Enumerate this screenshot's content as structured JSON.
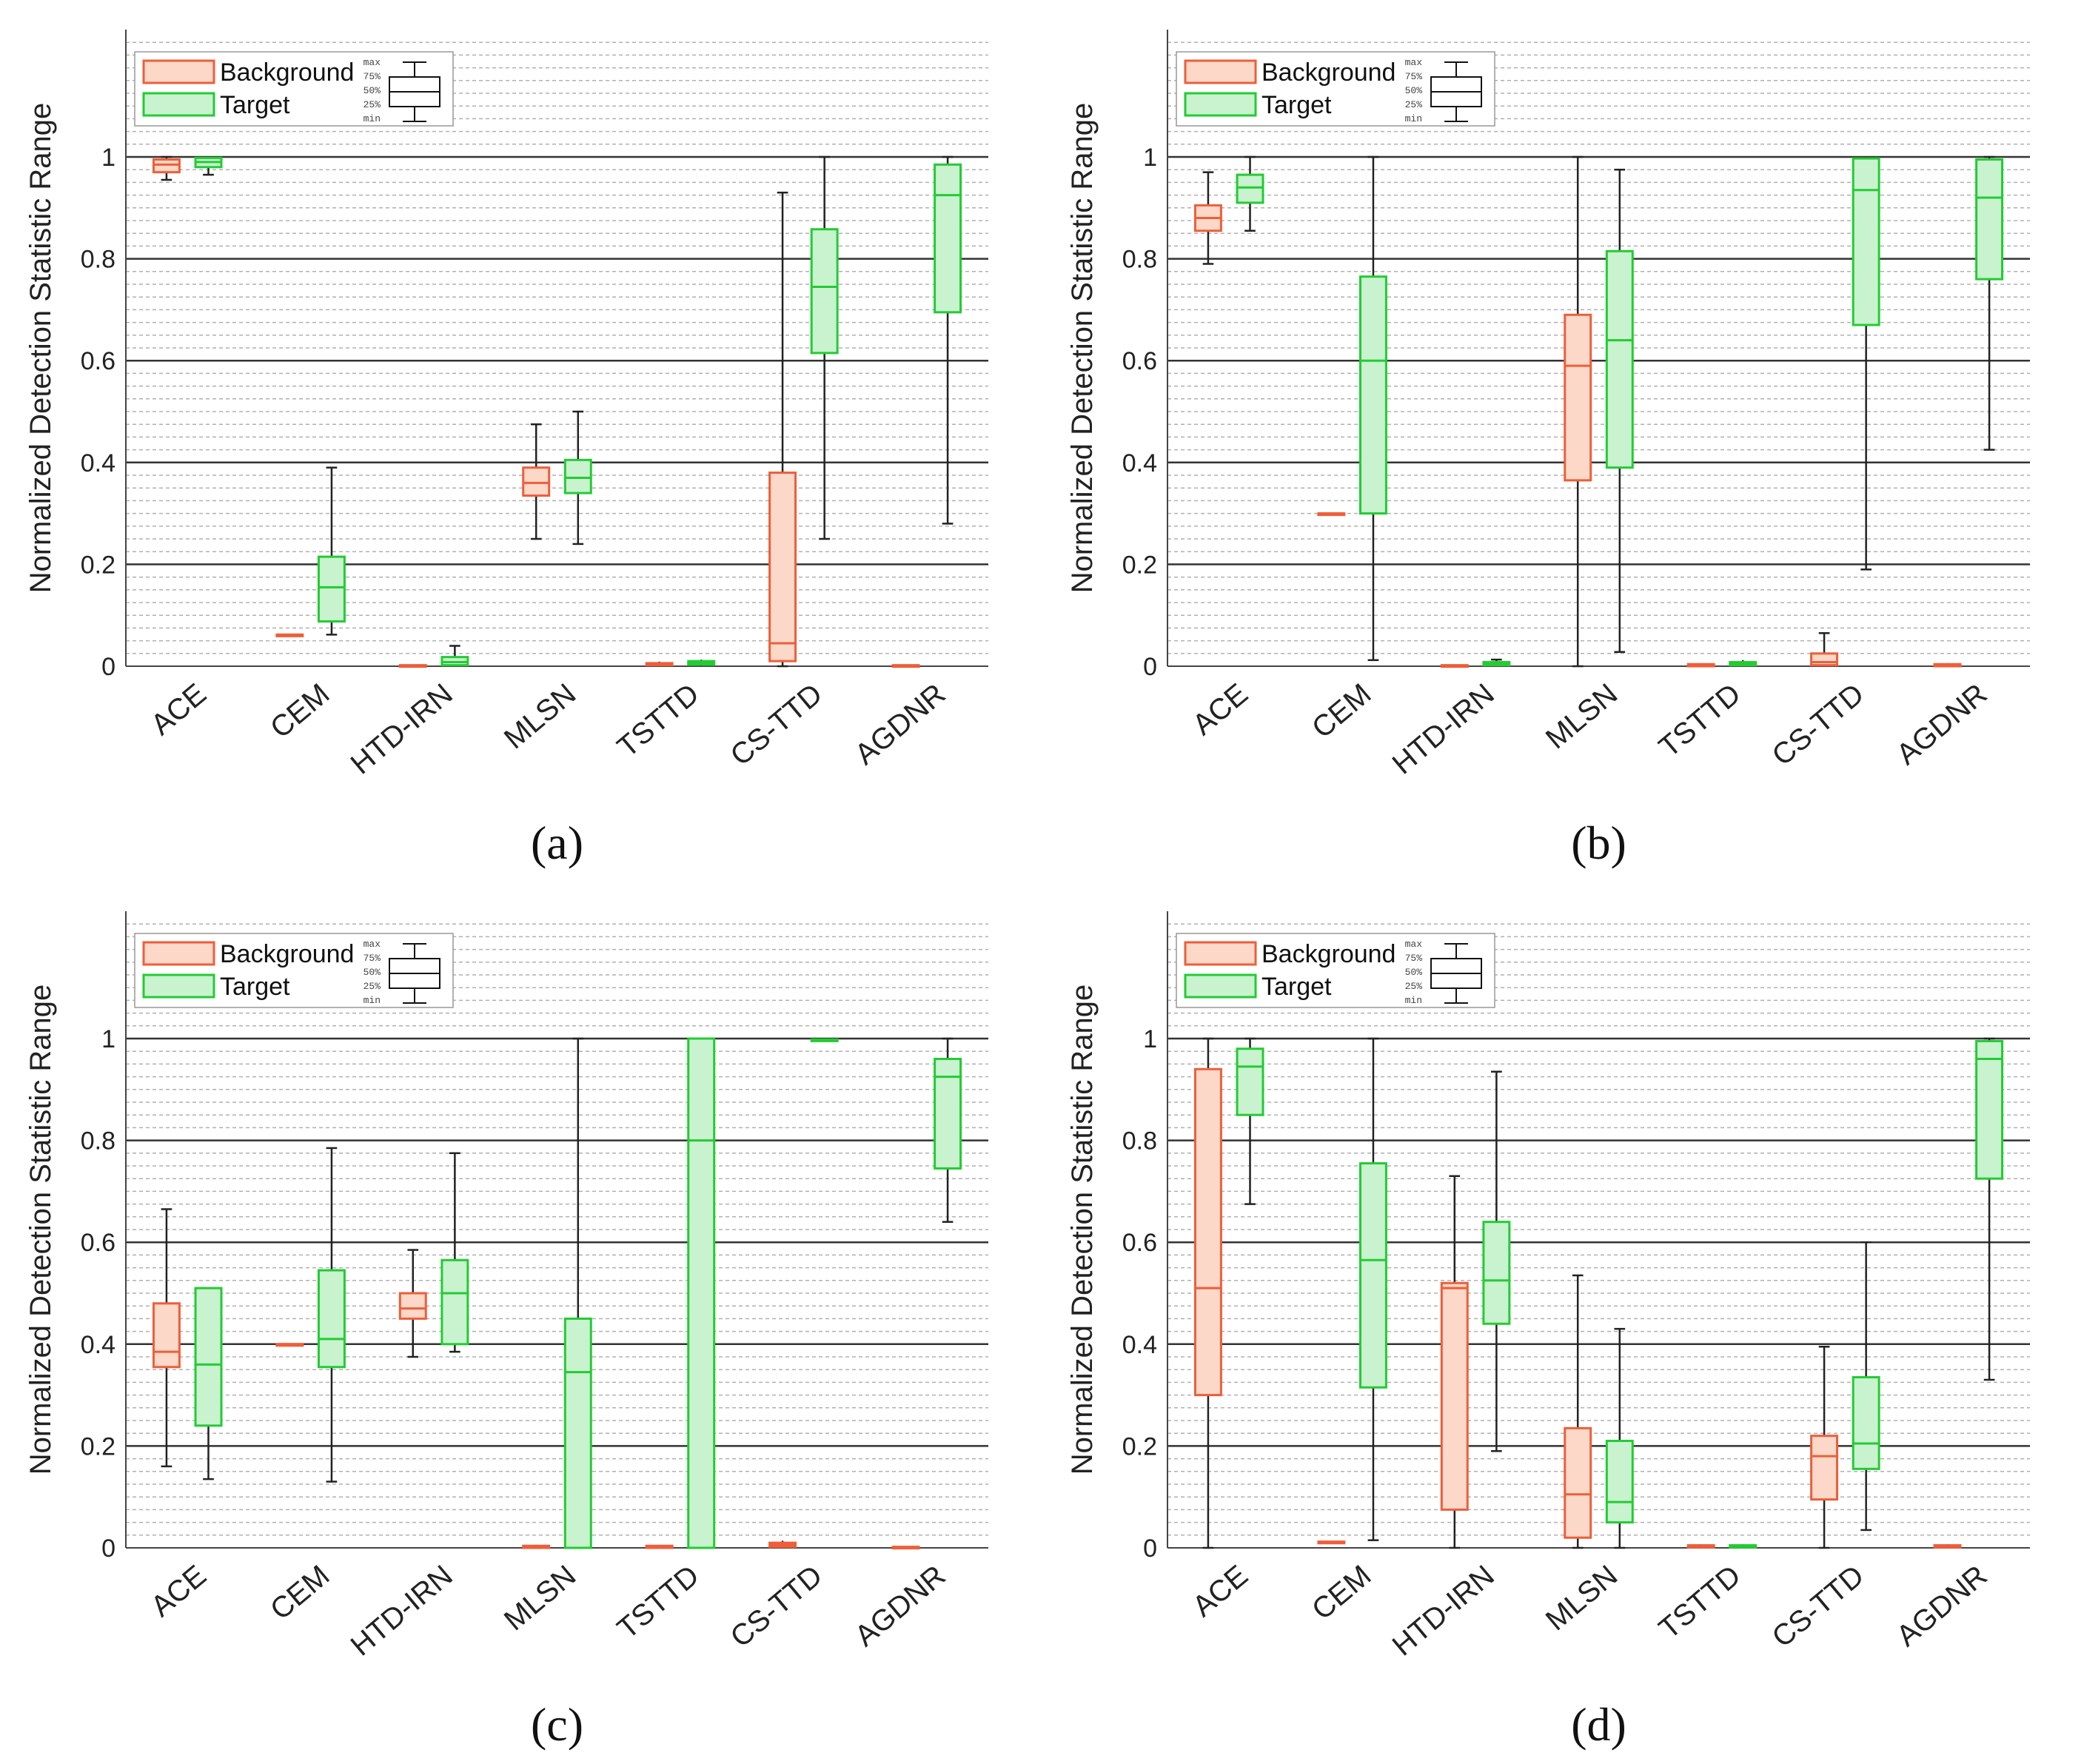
{
  "figure": {
    "colors": {
      "background_edge": "#ee5e3a",
      "background_fill": "#fbd8c8",
      "target_edge": "#22cc33",
      "target_fill": "#c9f2cf",
      "whisker": "#222222",
      "grid_major": "#333333",
      "grid_minor": "#b0b0b0"
    },
    "legend": {
      "background_label": "Background",
      "target_label": "Target",
      "key_labels": [
        "max",
        "75%",
        "50%",
        "25%",
        "min"
      ]
    }
  },
  "chart_data": [
    {
      "panel_label": "(a)",
      "type": "boxplot",
      "ylabel": "Normalized Detection Statistic Range",
      "ylim": [
        0,
        1.25
      ],
      "yticks": [
        "0",
        "0.2",
        "0.4",
        "0.6",
        "0.8",
        "1"
      ],
      "categories": [
        "ACE",
        "CEM",
        "HTD-IRN",
        "MLSN",
        "TSTTD",
        "CS-TTD",
        "AGDNR"
      ],
      "series": [
        {
          "name": "Background",
          "boxes": [
            {
              "min": 0.955,
              "q1": 0.97,
              "median": 0.985,
              "q3": 0.995,
              "max": 1.0
            },
            {
              "min": 0.062,
              "q1": 0.062,
              "median": 0.062,
              "q3": 0.062,
              "max": 0.062
            },
            {
              "min": 0.0,
              "q1": 0.0,
              "median": 0.001,
              "q3": 0.002,
              "max": 0.003
            },
            {
              "min": 0.25,
              "q1": 0.335,
              "median": 0.36,
              "q3": 0.39,
              "max": 0.475
            },
            {
              "min": 0.0,
              "q1": 0.002,
              "median": 0.004,
              "q3": 0.006,
              "max": 0.009
            },
            {
              "min": 0.0,
              "q1": 0.01,
              "median": 0.045,
              "q3": 0.38,
              "max": 0.93
            },
            {
              "min": 0.0,
              "q1": 0.0,
              "median": 0.001,
              "q3": 0.002,
              "max": 0.003
            }
          ]
        },
        {
          "name": "Target",
          "boxes": [
            {
              "min": 0.965,
              "q1": 0.98,
              "median": 0.99,
              "q3": 0.998,
              "max": 1.0
            },
            {
              "min": 0.062,
              "q1": 0.088,
              "median": 0.155,
              "q3": 0.215,
              "max": 0.39
            },
            {
              "min": 0.0,
              "q1": 0.002,
              "median": 0.008,
              "q3": 0.018,
              "max": 0.04
            },
            {
              "min": 0.24,
              "q1": 0.34,
              "median": 0.37,
              "q3": 0.405,
              "max": 0.5
            },
            {
              "min": 0.0,
              "q1": 0.003,
              "median": 0.006,
              "q3": 0.01,
              "max": 0.013
            },
            {
              "min": 0.25,
              "q1": 0.615,
              "median": 0.745,
              "q3": 0.858,
              "max": 1.0
            },
            {
              "min": 0.28,
              "q1": 0.695,
              "median": 0.925,
              "q3": 0.985,
              "max": 1.0
            }
          ]
        }
      ]
    },
    {
      "panel_label": "(b)",
      "type": "boxplot",
      "ylabel": "Normalized Detection Statistic Range",
      "ylim": [
        0,
        1.25
      ],
      "yticks": [
        "0",
        "0.2",
        "0.4",
        "0.6",
        "0.8",
        "1"
      ],
      "categories": [
        "ACE",
        "CEM",
        "HTD-IRN",
        "MLSN",
        "TSTTD",
        "CS-TTD",
        "AGDNR"
      ],
      "series": [
        {
          "name": "Background",
          "boxes": [
            {
              "min": 0.79,
              "q1": 0.855,
              "median": 0.88,
              "q3": 0.905,
              "max": 0.97
            },
            {
              "min": 0.3,
              "q1": 0.3,
              "median": 0.3,
              "q3": 0.3,
              "max": 0.3
            },
            {
              "min": 0.0,
              "q1": 0.0,
              "median": 0.001,
              "q3": 0.002,
              "max": 0.003
            },
            {
              "min": 0.0,
              "q1": 0.365,
              "median": 0.59,
              "q3": 0.69,
              "max": 1.0
            },
            {
              "min": 0.0,
              "q1": 0.0,
              "median": 0.002,
              "q3": 0.004,
              "max": 0.006
            },
            {
              "min": 0.0,
              "q1": 0.002,
              "median": 0.008,
              "q3": 0.025,
              "max": 0.065
            },
            {
              "min": 0.0,
              "q1": 0.0,
              "median": 0.002,
              "q3": 0.004,
              "max": 0.006
            }
          ]
        },
        {
          "name": "Target",
          "boxes": [
            {
              "min": 0.855,
              "q1": 0.91,
              "median": 0.94,
              "q3": 0.965,
              "max": 1.0
            },
            {
              "min": 0.012,
              "q1": 0.3,
              "median": 0.6,
              "q3": 0.765,
              "max": 1.0
            },
            {
              "min": 0.0,
              "q1": 0.002,
              "median": 0.005,
              "q3": 0.008,
              "max": 0.013
            },
            {
              "min": 0.028,
              "q1": 0.39,
              "median": 0.64,
              "q3": 0.815,
              "max": 0.975
            },
            {
              "min": 0.0,
              "q1": 0.002,
              "median": 0.005,
              "q3": 0.008,
              "max": 0.012
            },
            {
              "min": 0.19,
              "q1": 0.67,
              "median": 0.935,
              "q3": 0.997,
              "max": 1.0
            },
            {
              "min": 0.425,
              "q1": 0.76,
              "median": 0.92,
              "q3": 0.995,
              "max": 1.0
            }
          ]
        }
      ]
    },
    {
      "panel_label": "(c)",
      "type": "boxplot",
      "ylabel": "Normalized Detection Statistic Range",
      "ylim": [
        0,
        1.25
      ],
      "yticks": [
        "0",
        "0.2",
        "0.4",
        "0.6",
        "0.8",
        "1"
      ],
      "categories": [
        "ACE",
        "CEM",
        "HTD-IRN",
        "MLSN",
        "TSTTD",
        "CS-TTD",
        "AGDNR"
      ],
      "series": [
        {
          "name": "Background",
          "boxes": [
            {
              "min": 0.16,
              "q1": 0.355,
              "median": 0.385,
              "q3": 0.48,
              "max": 0.665
            },
            {
              "min": 0.4,
              "q1": 0.4,
              "median": 0.4,
              "q3": 0.4,
              "max": 0.4
            },
            {
              "min": 0.375,
              "q1": 0.45,
              "median": 0.47,
              "q3": 0.5,
              "max": 0.585
            },
            {
              "min": 0.0,
              "q1": 0.0,
              "median": 0.002,
              "q3": 0.004,
              "max": 0.006
            },
            {
              "min": 0.0,
              "q1": 0.0,
              "median": 0.002,
              "q3": 0.004,
              "max": 0.006
            },
            {
              "min": 0.0,
              "q1": 0.002,
              "median": 0.006,
              "q3": 0.01,
              "max": 0.014
            },
            {
              "min": 0.0,
              "q1": 0.0,
              "median": 0.001,
              "q3": 0.002,
              "max": 0.003
            }
          ]
        },
        {
          "name": "Target",
          "boxes": [
            {
              "min": 0.135,
              "q1": 0.24,
              "median": 0.36,
              "q3": 0.51,
              "max": 0.51
            },
            {
              "min": 0.13,
              "q1": 0.355,
              "median": 0.41,
              "q3": 0.545,
              "max": 0.785
            },
            {
              "min": 0.385,
              "q1": 0.4,
              "median": 0.5,
              "q3": 0.565,
              "max": 0.775
            },
            {
              "min": 0.0,
              "q1": 0.0,
              "median": 0.345,
              "q3": 0.45,
              "max": 1.0
            },
            {
              "min": 0.0,
              "q1": 0.0,
              "median": 0.8,
              "q3": 1.0,
              "max": 1.0
            },
            {
              "min": 0.995,
              "q1": 0.996,
              "median": 0.997,
              "q3": 0.998,
              "max": 1.0
            },
            {
              "min": 0.64,
              "q1": 0.745,
              "median": 0.925,
              "q3": 0.96,
              "max": 1.0
            }
          ]
        }
      ]
    },
    {
      "panel_label": "(d)",
      "type": "boxplot",
      "ylabel": "Normalized Detection Statistic Range",
      "ylim": [
        0,
        1.25
      ],
      "yticks": [
        "0",
        "0.2",
        "0.4",
        "0.6",
        "0.8",
        "1"
      ],
      "categories": [
        "ACE",
        "CEM",
        "HTD-IRN",
        "MLSN",
        "TSTTD",
        "CS-TTD",
        "AGDNR"
      ],
      "series": [
        {
          "name": "Background",
          "boxes": [
            {
              "min": 0.0,
              "q1": 0.3,
              "median": 0.51,
              "q3": 0.94,
              "max": 1.0
            },
            {
              "min": 0.012,
              "q1": 0.012,
              "median": 0.012,
              "q3": 0.012,
              "max": 0.012
            },
            {
              "min": 0.0,
              "q1": 0.075,
              "median": 0.51,
              "q3": 0.52,
              "max": 0.73
            },
            {
              "min": 0.0,
              "q1": 0.02,
              "median": 0.105,
              "q3": 0.235,
              "max": 0.535
            },
            {
              "min": 0.0,
              "q1": 0.001,
              "median": 0.003,
              "q3": 0.005,
              "max": 0.007
            },
            {
              "min": 0.0,
              "q1": 0.095,
              "median": 0.18,
              "q3": 0.22,
              "max": 0.395
            },
            {
              "min": 0.0,
              "q1": 0.001,
              "median": 0.003,
              "q3": 0.005,
              "max": 0.007
            }
          ]
        },
        {
          "name": "Target",
          "boxes": [
            {
              "min": 0.675,
              "q1": 0.85,
              "median": 0.945,
              "q3": 0.98,
              "max": 1.0
            },
            {
              "min": 0.015,
              "q1": 0.315,
              "median": 0.565,
              "q3": 0.755,
              "max": 1.0
            },
            {
              "min": 0.19,
              "q1": 0.44,
              "median": 0.525,
              "q3": 0.64,
              "max": 0.935
            },
            {
              "min": 0.0,
              "q1": 0.05,
              "median": 0.09,
              "q3": 0.21,
              "max": 0.43
            },
            {
              "min": 0.0,
              "q1": 0.001,
              "median": 0.003,
              "q3": 0.005,
              "max": 0.007
            },
            {
              "min": 0.035,
              "q1": 0.155,
              "median": 0.205,
              "q3": 0.335,
              "max": 0.6
            },
            {
              "min": 0.33,
              "q1": 0.725,
              "median": 0.96,
              "q3": 0.995,
              "max": 1.0
            }
          ]
        }
      ]
    }
  ]
}
